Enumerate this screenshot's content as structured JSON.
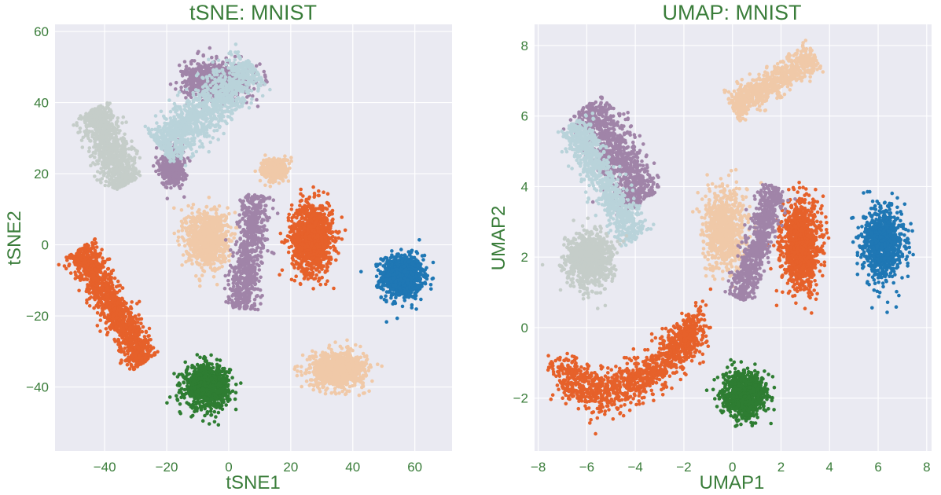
{
  "chart_data": [
    {
      "type": "scatter",
      "title": "tSNE: MNIST",
      "xlabel": "tSNE1",
      "ylabel": "tSNE2",
      "xlim": [
        -56,
        72
      ],
      "ylim": [
        -58,
        62
      ],
      "xticks": [
        "−40",
        "−20",
        "0",
        "20",
        "40",
        "60"
      ],
      "xtick_values": [
        -40,
        -20,
        0,
        20,
        40,
        60
      ],
      "yticks": [
        "−40",
        "−20",
        "0",
        "20",
        "40",
        "60"
      ],
      "ytick_values": [
        -40,
        -20,
        0,
        20,
        40,
        60
      ],
      "grid": true,
      "clusters": [
        {
          "color": "#1f77b4",
          "points": 900,
          "center": [
            56,
            -9
          ],
          "spread": [
            6,
            5.5
          ],
          "shape": "blob"
        },
        {
          "color": "#e6612a",
          "points": 1100,
          "center": [
            27,
            2
          ],
          "spread": [
            6,
            9
          ],
          "shape": "blob"
        },
        {
          "color": "#e6612a",
          "points": 1300,
          "from": [
            -48,
            -1
          ],
          "to": [
            -27,
            -33
          ],
          "width": 3.5,
          "shape": "band"
        },
        {
          "color": "#2e7d32",
          "points": 900,
          "center": [
            -7,
            -40
          ],
          "spread": [
            6.5,
            5.5
          ],
          "shape": "blob"
        },
        {
          "color": "#f0c9a8",
          "points": 900,
          "center": [
            35,
            -35
          ],
          "spread": [
            8,
            4.5
          ],
          "shape": "blob"
        },
        {
          "color": "#f0c9a8",
          "points": 900,
          "center": [
            -7,
            2
          ],
          "spread": [
            6,
            7
          ],
          "shape": "blob"
        },
        {
          "color": "#f0c9a8",
          "points": 350,
          "center": [
            15,
            21
          ],
          "spread": [
            4,
            3
          ],
          "shape": "blob"
        },
        {
          "color": "#a084a8",
          "points": 900,
          "center": [
            -4,
            46
          ],
          "spread": [
            9,
            4.5
          ],
          "shape": "blob"
        },
        {
          "color": "#a084a8",
          "points": 400,
          "center": [
            -18,
            22
          ],
          "spread": [
            3.5,
            5
          ],
          "shape": "blob"
        },
        {
          "color": "#a084a8",
          "points": 700,
          "from": [
            9,
            14
          ],
          "to": [
            4,
            -18
          ],
          "width": 3.5,
          "shape": "band"
        },
        {
          "color": "#b9d3da",
          "points": 1200,
          "from": [
            -22,
            27
          ],
          "to": [
            8,
            50
          ],
          "width": 5,
          "shape": "band"
        },
        {
          "color": "#c5cdc9",
          "points": 1000,
          "from": [
            -44,
            38
          ],
          "to": [
            -33,
            17
          ],
          "width": 4,
          "shape": "band"
        }
      ]
    },
    {
      "type": "scatter",
      "title": "UMAP: MNIST",
      "xlabel": "UMAP1",
      "ylabel": "UMAP2",
      "xlim": [
        -8.15,
        8.2
      ],
      "ylim": [
        -3.5,
        8.6
      ],
      "xticks": [
        "−8",
        "−6",
        "−4",
        "−2",
        "0",
        "2",
        "4",
        "6",
        "8"
      ],
      "xtick_values": [
        -8,
        -6,
        -4,
        -2,
        0,
        2,
        4,
        6,
        8
      ],
      "yticks": [
        "−2",
        "0",
        "2",
        "4",
        "6",
        "8"
      ],
      "ytick_values": [
        -2,
        0,
        2,
        4,
        6,
        8
      ],
      "grid": true,
      "clusters": [
        {
          "color": "#1f77b4",
          "points": 900,
          "center": [
            6.2,
            2.4
          ],
          "spread": [
            0.75,
            0.9
          ],
          "shape": "blob"
        },
        {
          "color": "#e6612a",
          "points": 1100,
          "center": [
            2.8,
            2.3
          ],
          "spread": [
            0.7,
            1.1
          ],
          "shape": "blob"
        },
        {
          "color": "#e6612a",
          "points": 1300,
          "path": [
            [
              -7.2,
              -1.2
            ],
            [
              -5.5,
              -1.9
            ],
            [
              -3.5,
              -1.4
            ],
            [
              -2.2,
              -0.6
            ],
            [
              -1.5,
              0.2
            ]
          ],
          "width": 0.38,
          "shape": "path"
        },
        {
          "color": "#2e7d32",
          "points": 900,
          "center": [
            0.5,
            -1.9
          ],
          "spread": [
            0.8,
            0.55
          ],
          "shape": "blob"
        },
        {
          "color": "#f0c9a8",
          "points": 700,
          "from": [
            0,
            6.2
          ],
          "to": [
            3.4,
            7.7
          ],
          "width": 0.35,
          "shape": "band"
        },
        {
          "color": "#f0c9a8",
          "points": 800,
          "center": [
            -0.3,
            2.8
          ],
          "spread": [
            0.8,
            1.0
          ],
          "shape": "blob"
        },
        {
          "color": "#a084a8",
          "points": 900,
          "from": [
            -6,
            6.3
          ],
          "to": [
            -3.6,
            3.6
          ],
          "width": 0.55,
          "shape": "band"
        },
        {
          "color": "#a084a8",
          "points": 700,
          "from": [
            1.8,
            4.0
          ],
          "to": [
            0.3,
            0.8
          ],
          "width": 0.35,
          "shape": "band"
        },
        {
          "color": "#b9d3da",
          "points": 900,
          "from": [
            -6.6,
            5.8
          ],
          "to": [
            -4.0,
            2.5
          ],
          "width": 0.4,
          "shape": "band"
        },
        {
          "color": "#c5cdc9",
          "points": 900,
          "center": [
            -5.9,
            1.9
          ],
          "spread": [
            0.85,
            0.7
          ],
          "shape": "blob"
        }
      ]
    }
  ]
}
